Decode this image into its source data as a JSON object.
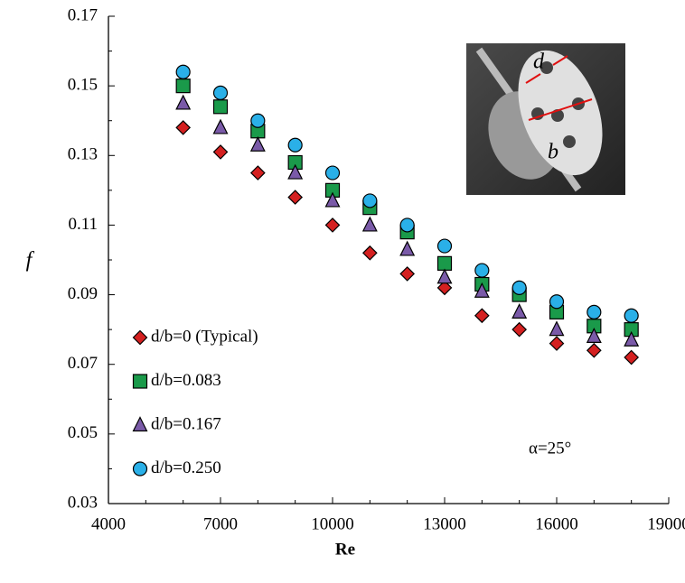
{
  "chart_data": {
    "type": "scatter",
    "x_label": "Re",
    "y_label": "f",
    "x": [
      6000,
      7000,
      8000,
      9000,
      10000,
      11000,
      12000,
      13000,
      14000,
      15000,
      16000,
      17000,
      18000
    ],
    "series": [
      {
        "name": "d/b=0 (Typical)",
        "color": "#d42020",
        "marker": "diamond",
        "values": [
          0.138,
          0.131,
          0.125,
          0.118,
          0.11,
          0.102,
          0.096,
          0.092,
          0.084,
          0.08,
          0.076,
          0.074,
          0.072
        ]
      },
      {
        "name": "d/b=0.083",
        "color": "#1a9a4a",
        "marker": "square",
        "values": [
          0.15,
          0.144,
          0.137,
          0.128,
          0.12,
          0.115,
          0.108,
          0.099,
          0.093,
          0.09,
          0.085,
          0.081,
          0.08
        ]
      },
      {
        "name": "d/b=0.167",
        "color": "#7a5aa8",
        "marker": "triangle",
        "values": [
          0.145,
          0.138,
          0.133,
          0.125,
          0.117,
          0.11,
          0.103,
          0.095,
          0.091,
          0.085,
          0.08,
          0.078,
          0.077
        ]
      },
      {
        "name": "d/b=0.250",
        "color": "#2ab0e8",
        "marker": "circle",
        "values": [
          0.154,
          0.148,
          0.14,
          0.133,
          0.125,
          0.117,
          0.11,
          0.104,
          0.097,
          0.092,
          0.088,
          0.085,
          0.084
        ]
      }
    ],
    "xlim": [
      4000,
      19000
    ],
    "xticks": [
      4000,
      7000,
      10000,
      13000,
      16000,
      19000
    ],
    "ylim": [
      0.03,
      0.17
    ],
    "yticks": [
      0.03,
      0.05,
      0.07,
      0.09,
      0.11,
      0.13,
      0.15,
      0.17
    ],
    "legend": "lower left",
    "annotation": "α=25°",
    "inset_labels": [
      "d",
      "b"
    ]
  }
}
